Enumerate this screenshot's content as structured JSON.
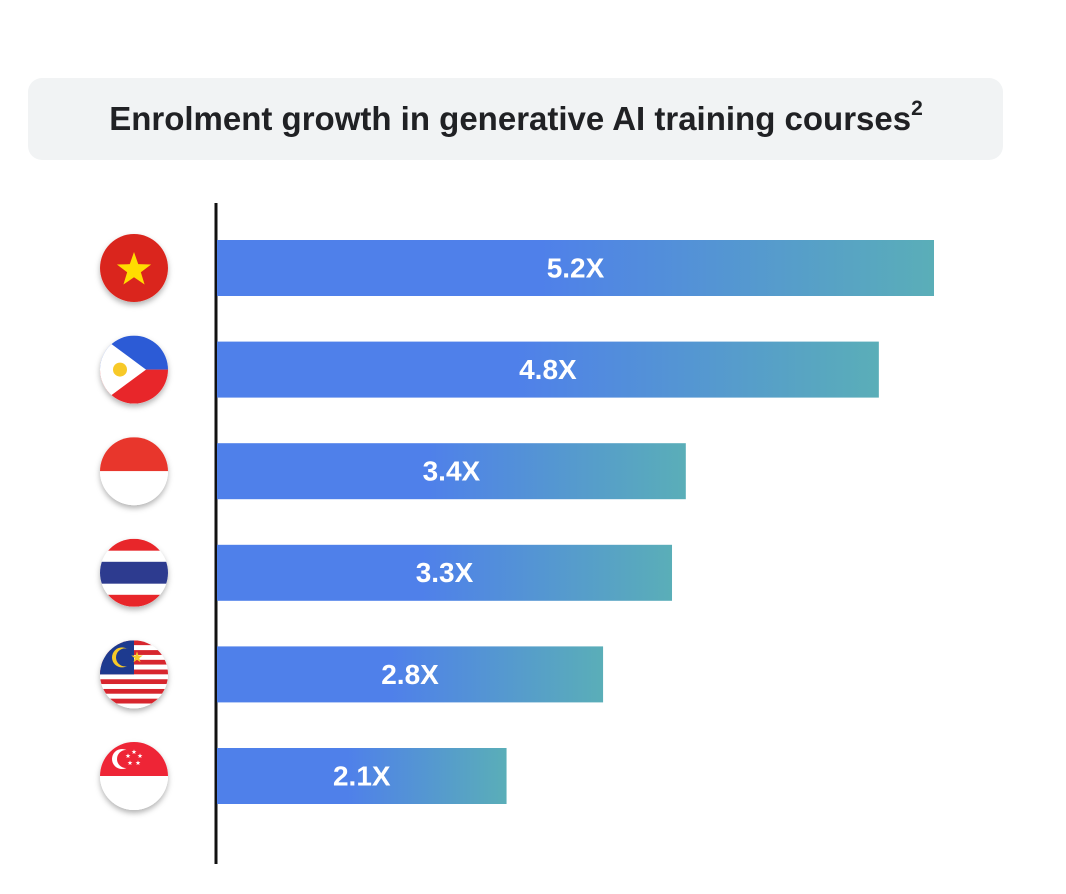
{
  "chart_data": {
    "type": "bar",
    "orientation": "horizontal",
    "title": "Enrolment growth in generative AI training courses",
    "title_superscript": "2",
    "categories": [
      null,
      null,
      null,
      null,
      null,
      null
    ],
    "values": [
      5.2,
      4.8,
      3.4,
      3.3,
      2.8,
      2.1
    ],
    "value_labels": [
      "5.2X",
      "4.8X",
      "3.4X",
      "3.3X",
      "2.8X",
      "2.1X"
    ],
    "color": "#4f80ea",
    "gradient_end": "#5aaeb8"
  }
}
